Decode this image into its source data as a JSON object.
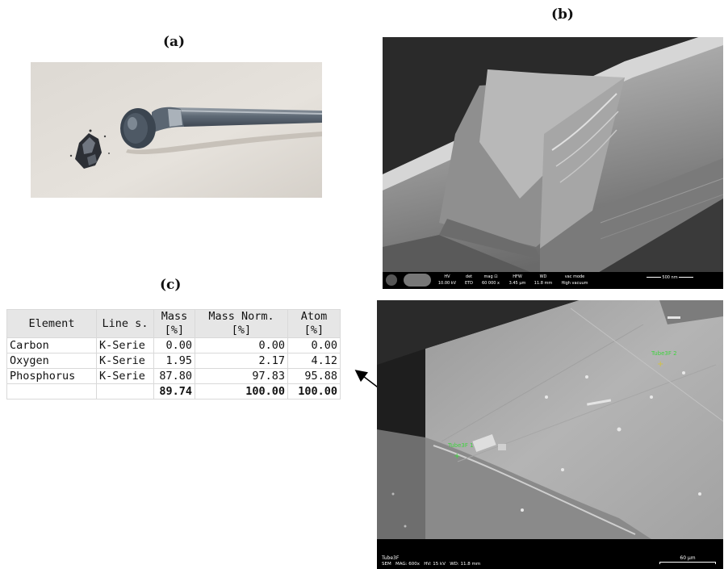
{
  "labels": {
    "a": "(a)",
    "b": "(b)",
    "c": "(c)"
  },
  "sem_b": {
    "hv_h": "HV",
    "hv": "10.00 kV",
    "det_h": "det",
    "det": "ETD",
    "mag_h": "mag ⊡",
    "mag": "60 000 x",
    "hfw_h": "HFW",
    "hfw": "3.45 µm",
    "wd_h": "WD",
    "wd": "11.8 mm",
    "vac_h": "vac mode",
    "vac": "High vacuum",
    "scale": "500 nm"
  },
  "sem_c": {
    "sample": "Tube3F",
    "info": "SEM   MAG: 600x   HV: 15 kV   WD: 11.8 mm",
    "scale": "60 µm",
    "point1": "Tube3F 1",
    "point2": "Tube3F 2"
  },
  "table": {
    "headers": [
      {
        "l1": "Element",
        "l2": ""
      },
      {
        "l1": "Line s.",
        "l2": ""
      },
      {
        "l1": "Mass",
        "l2": "[%]"
      },
      {
        "l1": "Mass Norm.",
        "l2": "[%]"
      },
      {
        "l1": "Atom",
        "l2": "[%]"
      }
    ],
    "rows": [
      {
        "element": "Carbon",
        "line": "K-Serie",
        "mass": "0.00",
        "norm": "0.00",
        "atom": "0.00"
      },
      {
        "element": "Oxygen",
        "line": "K-Serie",
        "mass": "1.95",
        "norm": "2.17",
        "atom": "4.12"
      },
      {
        "element": "Phosphorus",
        "line": "K-Serie",
        "mass": "87.80",
        "norm": "97.83",
        "atom": "95.88"
      }
    ],
    "total": {
      "mass": "89.74",
      "norm": "100.00",
      "atom": "100.00"
    }
  }
}
